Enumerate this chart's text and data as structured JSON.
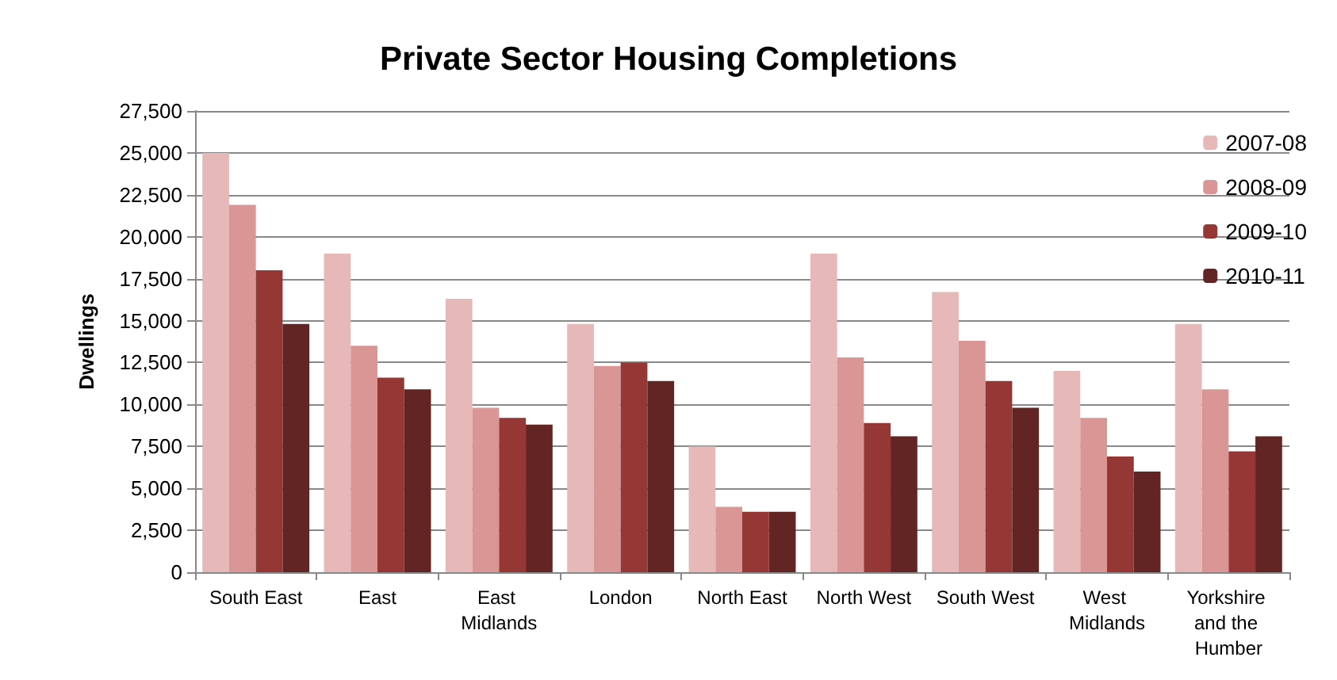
{
  "chart_data": {
    "type": "bar",
    "title": "Private Sector Housing Completions",
    "ylabel": "Dwellings",
    "categories": [
      "South East",
      "East",
      "East Midlands",
      "London",
      "North East",
      "North West",
      "South West",
      "West Midlands",
      "Yorkshire and the Humber"
    ],
    "series": [
      {
        "name": "2007-08",
        "color": "#e6b8b7",
        "values": [
          25000,
          19000,
          16300,
          14800,
          7500,
          19000,
          16700,
          12000,
          14800
        ]
      },
      {
        "name": "2008-09",
        "color": "#da9694",
        "values": [
          21900,
          13500,
          9800,
          12300,
          3900,
          12800,
          13800,
          9200,
          10900
        ]
      },
      {
        "name": "2009-10",
        "color": "#953735",
        "values": [
          18000,
          11600,
          9200,
          12500,
          3600,
          8900,
          11400,
          6900,
          7200
        ]
      },
      {
        "name": "2010-11",
        "color": "#632523",
        "values": [
          14800,
          10900,
          8800,
          11400,
          3600,
          8100,
          9800,
          6000,
          8100
        ]
      }
    ],
    "ylim": [
      0,
      27500
    ],
    "yticks": [
      0,
      {
        "value": 2500,
        "label": "2,500"
      },
      {
        "value": 5000,
        "label": "5,000"
      },
      {
        "value": 7500,
        "label": "7,500"
      },
      {
        "value": 10000,
        "label": "10,000"
      },
      {
        "value": 12500,
        "label": "12,500"
      },
      {
        "value": 15000,
        "label": "15,000"
      },
      {
        "value": 17500,
        "label": "17,500"
      },
      {
        "value": 20000,
        "label": "20,000"
      },
      {
        "value": 22500,
        "label": "22,500"
      },
      {
        "value": 25000,
        "label": "25,000"
      },
      {
        "value": 27500,
        "label": "27,500"
      }
    ],
    "grid": "y",
    "legend": "top right"
  }
}
